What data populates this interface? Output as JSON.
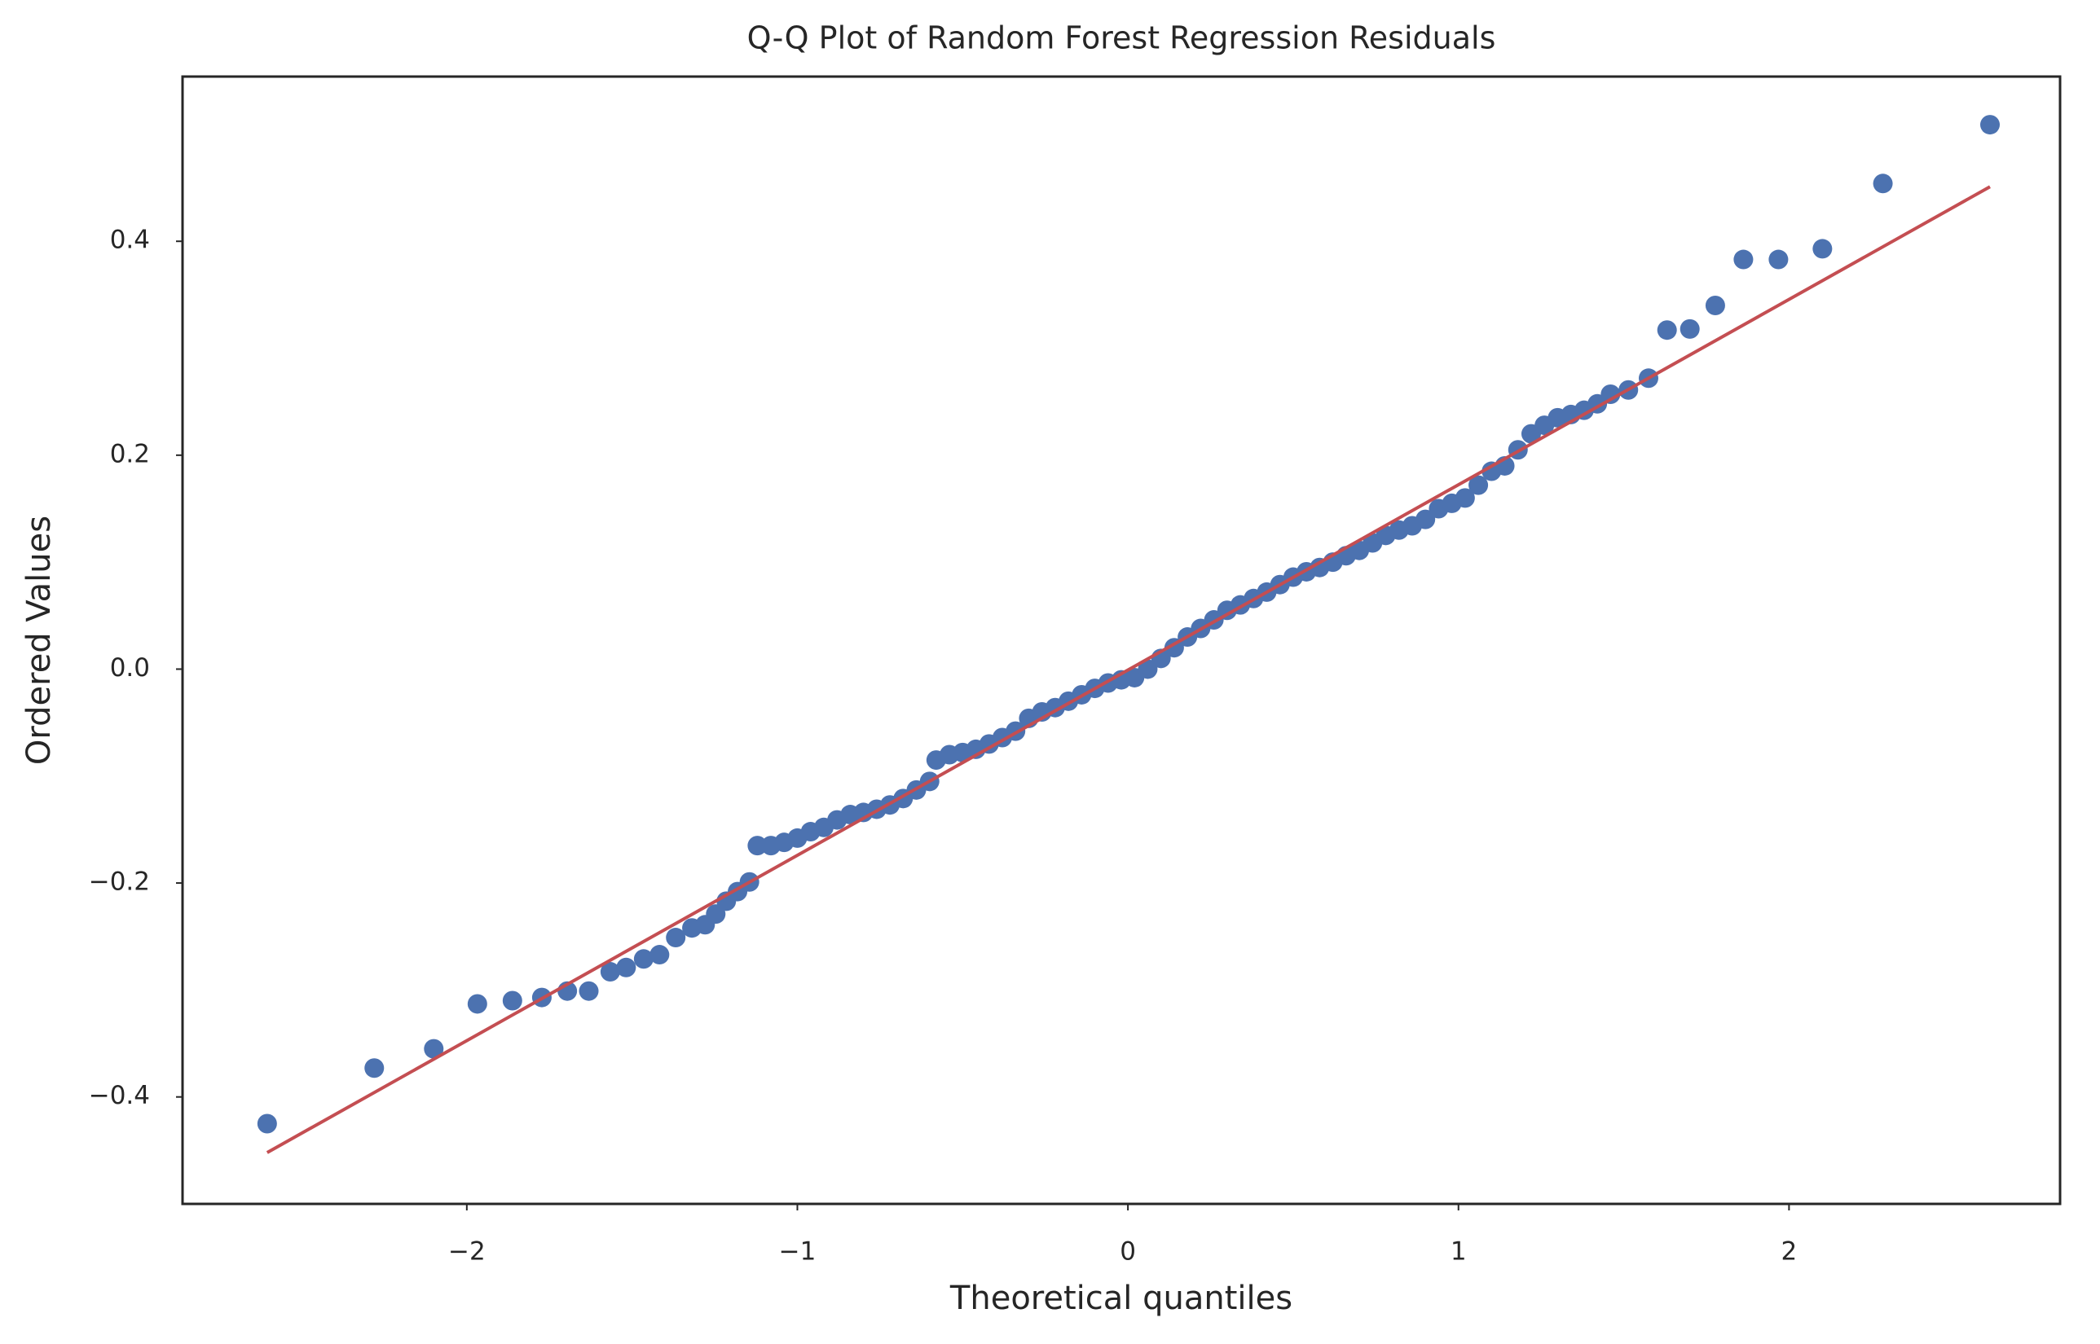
{
  "chart_data": {
    "type": "scatter",
    "title": "Q-Q Plot of Random Forest Regression Residuals",
    "x_label": "Theoretical quantiles",
    "y_label": "Ordered Values",
    "color": "#4c72b0",
    "x": [
      -2.604,
      -2.28,
      -2.1,
      -1.968,
      -1.862,
      -1.773,
      -1.696,
      -1.631,
      -1.566,
      -1.518,
      -1.465,
      -1.417,
      -1.368,
      -1.319,
      -1.279,
      -1.247,
      -1.215,
      -1.181,
      -1.145,
      -1.121,
      -1.08,
      -1.04,
      -1.0,
      -0.96,
      -0.92,
      -0.88,
      -0.84,
      -0.8,
      -0.76,
      -0.72,
      -0.68,
      -0.64,
      -0.6,
      -0.58,
      -0.54,
      -0.5,
      -0.46,
      -0.42,
      -0.38,
      -0.34,
      -0.3,
      -0.26,
      -0.22,
      -0.18,
      -0.14,
      -0.1,
      -0.06,
      -0.02,
      0.02,
      0.06,
      0.1,
      0.14,
      0.18,
      0.22,
      0.26,
      0.3,
      0.34,
      0.38,
      0.42,
      0.46,
      0.5,
      0.54,
      0.58,
      0.62,
      0.66,
      0.7,
      0.74,
      0.78,
      0.82,
      0.86,
      0.9,
      0.94,
      0.98,
      1.02,
      1.06,
      1.1,
      1.14,
      1.18,
      1.22,
      1.26,
      1.3,
      1.34,
      1.38,
      1.42,
      1.46,
      1.514,
      1.575,
      1.631,
      1.7,
      1.777,
      1.862,
      1.968,
      2.101,
      2.284,
      2.608
    ],
    "y": [
      -0.425,
      -0.373,
      -0.355,
      -0.313,
      -0.31,
      -0.307,
      -0.301,
      -0.301,
      -0.283,
      -0.279,
      -0.271,
      -0.267,
      -0.251,
      -0.242,
      -0.239,
      -0.229,
      -0.217,
      -0.208,
      -0.199,
      -0.165,
      -0.165,
      -0.162,
      -0.158,
      -0.152,
      -0.148,
      -0.141,
      -0.136,
      -0.134,
      -0.131,
      -0.127,
      -0.121,
      -0.113,
      -0.105,
      -0.085,
      -0.08,
      -0.078,
      -0.075,
      -0.07,
      -0.064,
      -0.058,
      -0.046,
      -0.04,
      -0.036,
      -0.03,
      -0.024,
      -0.018,
      -0.013,
      -0.01,
      -0.008,
      0.0,
      0.01,
      0.02,
      0.03,
      0.038,
      0.046,
      0.055,
      0.06,
      0.066,
      0.072,
      0.079,
      0.086,
      0.091,
      0.095,
      0.1,
      0.106,
      0.111,
      0.118,
      0.125,
      0.13,
      0.134,
      0.14,
      0.15,
      0.155,
      0.16,
      0.172,
      0.185,
      0.19,
      0.205,
      0.22,
      0.228,
      0.235,
      0.238,
      0.242,
      0.248,
      0.257,
      0.261,
      0.272,
      0.317,
      0.318,
      0.34,
      0.383,
      0.383,
      0.393,
      0.454,
      0.509
    ],
    "fit_line": {
      "color": "#c44e52",
      "x": [
        -2.604,
        2.608
      ],
      "y": [
        -0.452,
        0.451
      ]
    },
    "xlim": [
      -2.86,
      2.82
    ],
    "ylim": [
      -0.5,
      0.554
    ],
    "xticks": [
      {
        "value": -2,
        "label": "−2"
      },
      {
        "value": -1,
        "label": "−1"
      },
      0,
      1,
      2
    ],
    "yticks": [
      {
        "value": -0.4,
        "label": "−0.4"
      },
      {
        "value": -0.2,
        "label": "−0.2"
      },
      {
        "value": 0,
        "label": "0.0"
      },
      0.2,
      0.4
    ]
  }
}
